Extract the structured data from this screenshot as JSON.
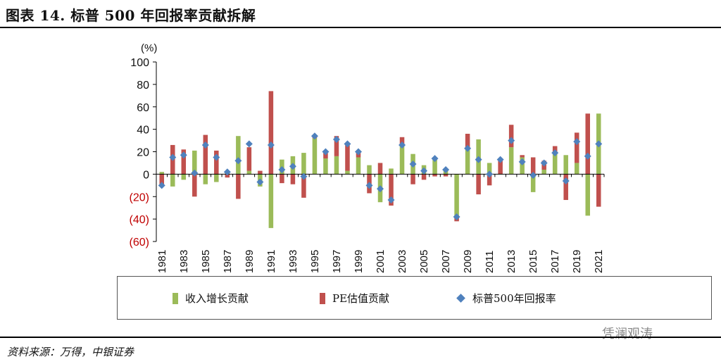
{
  "title": "图表 14. 标普 500 年回报率贡献拆解",
  "source": "资料来源：万得，中银证券",
  "watermark": "凭澜观涛",
  "colors": {
    "revenue": "#9bbb59",
    "pe": "#c0504d",
    "sp500": "#4f81bd",
    "negative_label": "#c00000"
  },
  "chart_data": {
    "type": "bar",
    "unit_label": "(%)",
    "ylim": [
      -60,
      100
    ],
    "yticks": [
      100,
      80,
      60,
      40,
      20,
      0,
      -20,
      -40,
      -60
    ],
    "ytick_labels": [
      "100",
      "80",
      "60",
      "40",
      "20",
      "0",
      "(20)",
      "(40)",
      "(60)"
    ],
    "categories": [
      "1981",
      "1982",
      "1983",
      "1984",
      "1985",
      "1986",
      "1987",
      "1988",
      "1989",
      "1990",
      "1991",
      "1992",
      "1993",
      "1994",
      "1995",
      "1996",
      "1997",
      "1998",
      "1999",
      "2000",
      "2001",
      "2002",
      "2003",
      "2004",
      "2005",
      "2006",
      "2007",
      "2008",
      "2009",
      "2010",
      "2011",
      "2012",
      "2013",
      "2014",
      "2015",
      "2016",
      "2017",
      "2018",
      "2019",
      "2020",
      "2021"
    ],
    "xtick_labels": [
      "1981",
      "1983",
      "1985",
      "1987",
      "1989",
      "1991",
      "1993",
      "1995",
      "1997",
      "1999",
      "2001",
      "2003",
      "2005",
      "2007",
      "2009",
      "2011",
      "2013",
      "2015",
      "2017",
      "2019",
      "2021"
    ],
    "series": [
      {
        "name": "收入增长贡献",
        "kind": "bar",
        "values": [
          2,
          -11,
          -5,
          21,
          -9,
          -7,
          3,
          34,
          3,
          -11,
          -48,
          13,
          16,
          19,
          32,
          14,
          16,
          3,
          15,
          8,
          -25,
          5,
          25,
          18,
          8,
          14,
          5,
          -38,
          23,
          31,
          10,
          0,
          24,
          15,
          -16,
          4,
          20,
          17,
          10,
          -37,
          54
        ]
      },
      {
        "name": "PE估值贡献",
        "kind": "bar",
        "values": [
          -11,
          26,
          22,
          -20,
          35,
          21,
          -3,
          -22,
          21,
          3,
          74,
          -8,
          -9,
          -21,
          2,
          7,
          18,
          24,
          4,
          -17,
          10,
          -28,
          8,
          -9,
          -5,
          -2,
          -2,
          -4,
          13,
          -18,
          -10,
          12,
          20,
          2,
          15,
          8,
          5,
          -23,
          27,
          54,
          -29
        ]
      },
      {
        "name": "标普500年回报率",
        "kind": "marker",
        "values": [
          -10,
          15,
          17,
          1,
          26,
          15,
          2,
          12,
          27,
          -7,
          26,
          4,
          7,
          -2,
          34,
          20,
          31,
          27,
          20,
          -10,
          -13,
          -23,
          26,
          9,
          3,
          14,
          4,
          -38,
          23,
          13,
          0,
          13,
          30,
          11,
          -1,
          10,
          19,
          -6,
          29,
          16,
          27
        ]
      }
    ]
  }
}
